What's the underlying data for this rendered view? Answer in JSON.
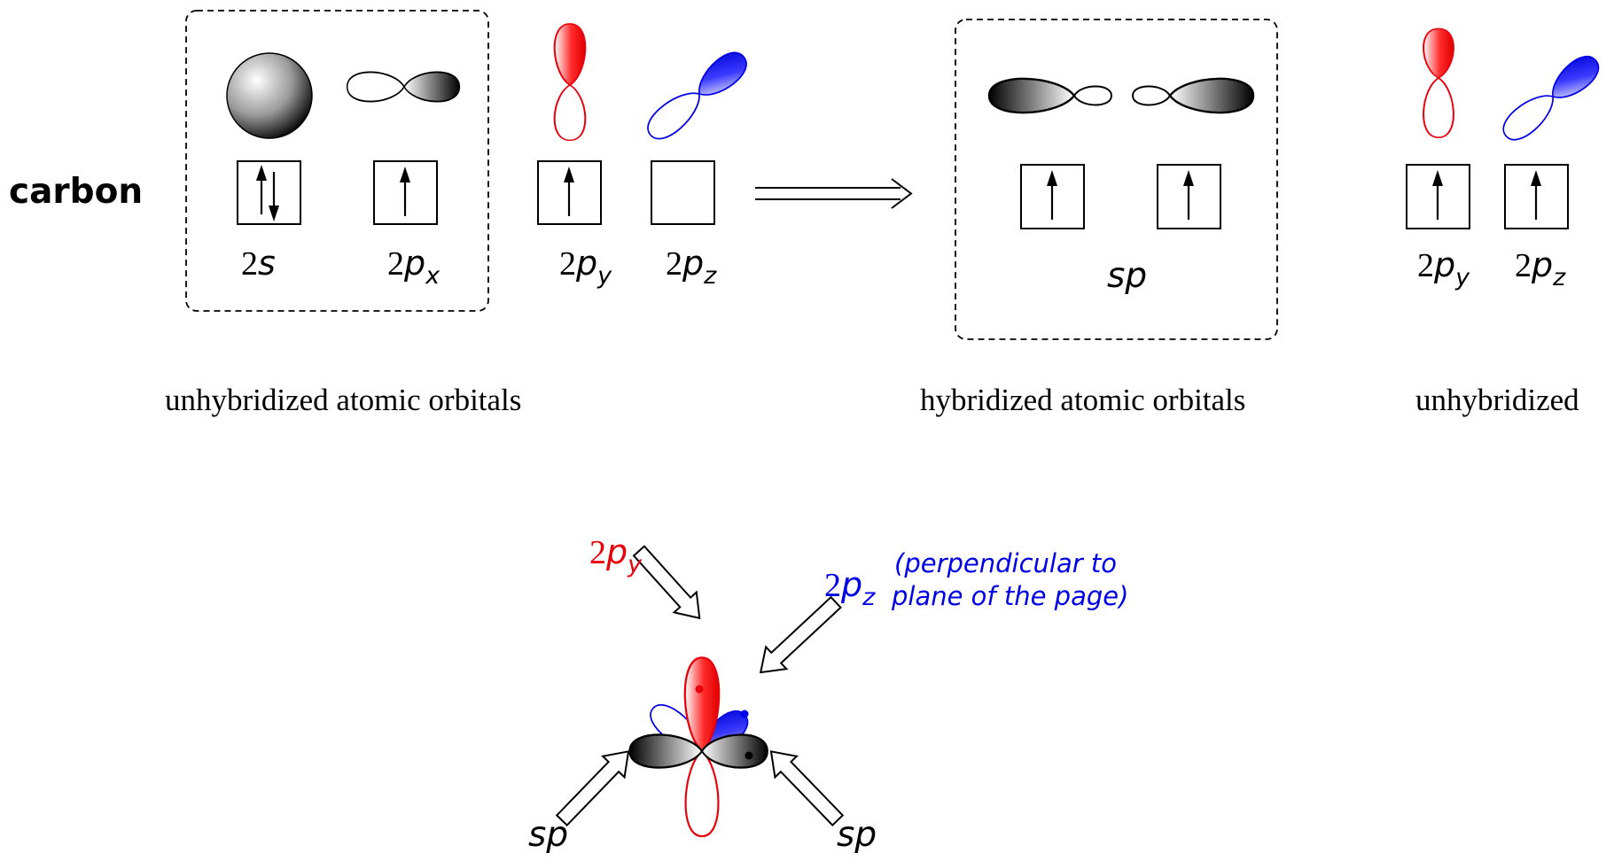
{
  "colors": {
    "red": "#e8000b",
    "blue": "#0000e6",
    "black": "#000000"
  },
  "element": "carbon",
  "unhybridized_left": {
    "orbitals": [
      {
        "number": "2",
        "letter": "s",
        "sub": "",
        "electrons": "paired"
      },
      {
        "number": "2",
        "letter": "p",
        "sub": "x",
        "electrons": "up"
      },
      {
        "number": "2",
        "letter": "p",
        "sub": "y",
        "electrons": "up"
      },
      {
        "number": "2",
        "letter": "p",
        "sub": "z",
        "electrons": "empty"
      }
    ],
    "caption": "unhybridized atomic orbitals"
  },
  "hybridized": {
    "label": "sp",
    "electrons": [
      "up",
      "up"
    ],
    "caption": "hybridized atomic orbitals"
  },
  "unhybridized_right": {
    "orbitals": [
      {
        "number": "2",
        "letter": "p",
        "sub": "y",
        "electrons": "up"
      },
      {
        "number": "2",
        "letter": "p",
        "sub": "z",
        "electrons": "up"
      }
    ],
    "caption": "unhybridized"
  },
  "bottom": {
    "py_label": {
      "number": "2",
      "letter": "p",
      "sub": "y"
    },
    "pz_label": {
      "number": "2",
      "letter": "p",
      "sub": "z"
    },
    "pz_note_line1": "(perpendicular to",
    "pz_note_line2": "plane of the page)",
    "sp_left": "sp",
    "sp_right": "sp"
  }
}
